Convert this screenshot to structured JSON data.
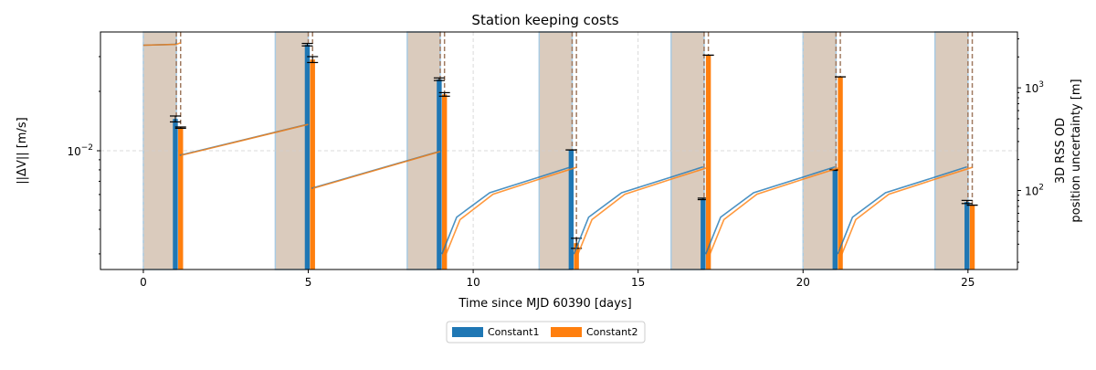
{
  "chart_data": {
    "type": "bar",
    "title": "Station keeping costs",
    "xlabel": "Time since MJD 60390 [days]",
    "ylabel": "||ΔV|| [m/s]",
    "y2label": [
      "3D RSS OD",
      "position uncertainty [m]"
    ],
    "xlim": [
      -1.3,
      26.5
    ],
    "ylim": [
      0.0025,
      0.04
    ],
    "yscale": "log",
    "y2lim": [
      17,
      3500
    ],
    "y2scale": "log",
    "grid": true,
    "legend_position": "bottom-center",
    "x_ticks": [
      {
        "v": 0,
        "label": "0"
      },
      {
        "v": 5,
        "label": "5"
      },
      {
        "v": 10,
        "label": "10"
      },
      {
        "v": 15,
        "label": "15"
      },
      {
        "v": 20,
        "label": "20"
      },
      {
        "v": 25,
        "label": "25"
      }
    ],
    "y_ticks": [
      {
        "v": 0.01,
        "label": "10",
        "exp": "−2"
      }
    ],
    "y2_ticks": [
      {
        "v": 100,
        "label": "10",
        "exp": "2"
      },
      {
        "v": 1000,
        "label": "10",
        "exp": "3"
      }
    ],
    "series": [
      {
        "name": "Constant1",
        "color": "#1f77b4",
        "bars": [
          {
            "x": 0.97,
            "value": 0.0145,
            "err": [
              0.014,
              0.015
            ]
          },
          {
            "x": 4.97,
            "value": 0.0345,
            "err": [
              0.034,
              0.035
            ]
          },
          {
            "x": 8.97,
            "value": 0.023,
            "err": [
              0.0227,
              0.0234
            ]
          },
          {
            "x": 12.97,
            "value": 0.0101,
            "err": [
              0.0101,
              0.0101
            ]
          },
          {
            "x": 16.97,
            "value": 0.0057,
            "err": [
              0.00565,
              0.00575
            ]
          },
          {
            "x": 20.97,
            "value": 0.008,
            "err": [
              0.00795,
              0.00805
            ]
          },
          {
            "x": 24.97,
            "value": 0.0055,
            "err": [
              0.0054,
              0.0056
            ]
          }
        ]
      },
      {
        "name": "Constant2",
        "color": "#ff7f0e",
        "bars": [
          {
            "x": 1.13,
            "value": 0.0131,
            "err": [
              0.013,
              0.0132
            ]
          },
          {
            "x": 5.13,
            "value": 0.029,
            "err": [
              0.028,
              0.03
            ]
          },
          {
            "x": 9.13,
            "value": 0.0193,
            "err": [
              0.0189,
              0.0197
            ]
          },
          {
            "x": 13.13,
            "value": 0.0034,
            "err": [
              0.0032,
              0.0036
            ]
          },
          {
            "x": 17.13,
            "value": 0.0305,
            "err": [
              0.0305,
              0.0305
            ]
          },
          {
            "x": 21.13,
            "value": 0.0237,
            "err": [
              0.0237,
              0.0237
            ]
          },
          {
            "x": 25.13,
            "value": 0.0053,
            "err": [
              0.0053,
              0.0053
            ]
          }
        ]
      }
    ],
    "bar_width_days": 0.15,
    "shaded_windows": [
      [
        0,
        1
      ],
      [
        4,
        5
      ],
      [
        8,
        9
      ],
      [
        12,
        13
      ],
      [
        16,
        17
      ],
      [
        20,
        21
      ],
      [
        24,
        25
      ]
    ],
    "dashed_lines": [
      1,
      1.13,
      5,
      5.13,
      9,
      9.13,
      13,
      13.13,
      17,
      17.13,
      21,
      21.13,
      25,
      25.13
    ],
    "uncertainty_curves": [
      {
        "color": "#1f77b4",
        "segments": [
          [
            [
              0,
              2600
            ],
            [
              0.97,
              2650
            ],
            [
              1.0,
              2750
            ]
          ],
          [
            [
              1.1,
              220
            ],
            [
              4.97,
              440
            ]
          ],
          [
            [
              5.1,
              105
            ],
            [
              8.97,
              240
            ]
          ],
          [
            [
              9.05,
              24
            ],
            [
              9.5,
              55
            ],
            [
              10.5,
              95
            ],
            [
              12,
              135
            ],
            [
              12.97,
              170
            ]
          ],
          [
            [
              13.05,
              24
            ],
            [
              13.5,
              55
            ],
            [
              14.5,
              95
            ],
            [
              16,
              135
            ],
            [
              16.97,
              170
            ]
          ],
          [
            [
              17.05,
              24
            ],
            [
              17.5,
              55
            ],
            [
              18.5,
              95
            ],
            [
              20,
              135
            ],
            [
              20.97,
              170
            ]
          ],
          [
            [
              21.05,
              24
            ],
            [
              21.5,
              55
            ],
            [
              22.5,
              95
            ],
            [
              24,
              135
            ],
            [
              24.97,
              170
            ]
          ]
        ]
      },
      {
        "color": "#ff7f0e",
        "segments": [
          [
            [
              0,
              2600
            ],
            [
              1.0,
              2650
            ],
            [
              1.13,
              2750
            ]
          ],
          [
            [
              1.15,
              220
            ],
            [
              5.0,
              440
            ]
          ],
          [
            [
              5.15,
              105
            ],
            [
              9.0,
              240
            ]
          ],
          [
            [
              9.13,
              22
            ],
            [
              9.6,
              52
            ],
            [
              10.6,
              92
            ],
            [
              12.1,
              132
            ],
            [
              13.13,
              168
            ]
          ],
          [
            [
              13.13,
              22
            ],
            [
              13.6,
              52
            ],
            [
              14.6,
              92
            ],
            [
              16.1,
              132
            ],
            [
              17.13,
              168
            ]
          ],
          [
            [
              17.13,
              22
            ],
            [
              17.6,
              52
            ],
            [
              18.6,
              92
            ],
            [
              20.1,
              132
            ],
            [
              21.13,
              168
            ]
          ],
          [
            [
              21.13,
              22
            ],
            [
              21.6,
              52
            ],
            [
              22.6,
              92
            ],
            [
              24.1,
              132
            ],
            [
              25.13,
              168
            ]
          ]
        ]
      }
    ]
  },
  "legend": {
    "items": [
      {
        "label": "Constant1",
        "color": "#1f77b4"
      },
      {
        "label": "Constant2",
        "color": "#ff7f0e"
      }
    ]
  }
}
